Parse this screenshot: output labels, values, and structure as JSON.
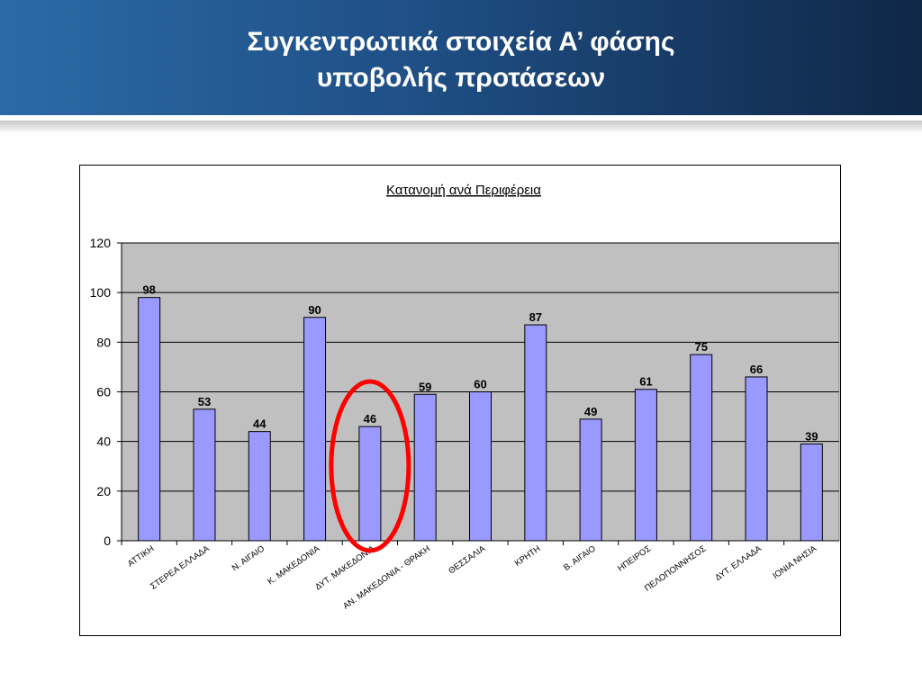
{
  "header": {
    "title": "Συγκεντρωτικά στοιχεία Α’ φάσης\nυποβολής προτάσεων"
  },
  "colors": {
    "bar_fill": "#9999ff",
    "plot_bg": "#c0c0c0",
    "highlight": "#ff0000"
  },
  "chart_data": {
    "type": "bar",
    "title": "Κατανομή ανά Περιφέρεια",
    "categories": [
      "ΑΤΤΙΚΗ",
      "ΣΤΕΡΕΑ ΕΛΛΑΔΑ",
      "Ν. ΑΙΓΑΙΟ",
      "Κ. ΜΑΚΕΔΟΝΙΑ",
      "ΔΥΤ. ΜΑΚΕΔΟΝΙΑ",
      "ΑΝ. ΜΑΚΕΔΟΝΙΑ - ΘΡΑΚΗ",
      "ΘΕΣΣΑΛΙΑ",
      "ΚΡΗΤΗ",
      "Β. ΑΙΓΑΙΟ",
      "ΗΠΕΙΡΟΣ",
      "ΠΕΛΟΠΟΝΝΗΣΟΣ",
      "ΔΥΤ. ΕΛΛΑΔΑ",
      "ΙΟΝΙΑ ΝΗΣΙΑ"
    ],
    "values": [
      98,
      53,
      44,
      90,
      46,
      59,
      60,
      87,
      49,
      61,
      75,
      66,
      39
    ],
    "ylim": [
      0,
      120
    ],
    "yticks": [
      0,
      20,
      40,
      60,
      80,
      100,
      120
    ],
    "grid": true,
    "legend": "none",
    "highlighted_category": "ΔΥΤ. ΜΑΚΕΔΟΝΙΑ"
  }
}
